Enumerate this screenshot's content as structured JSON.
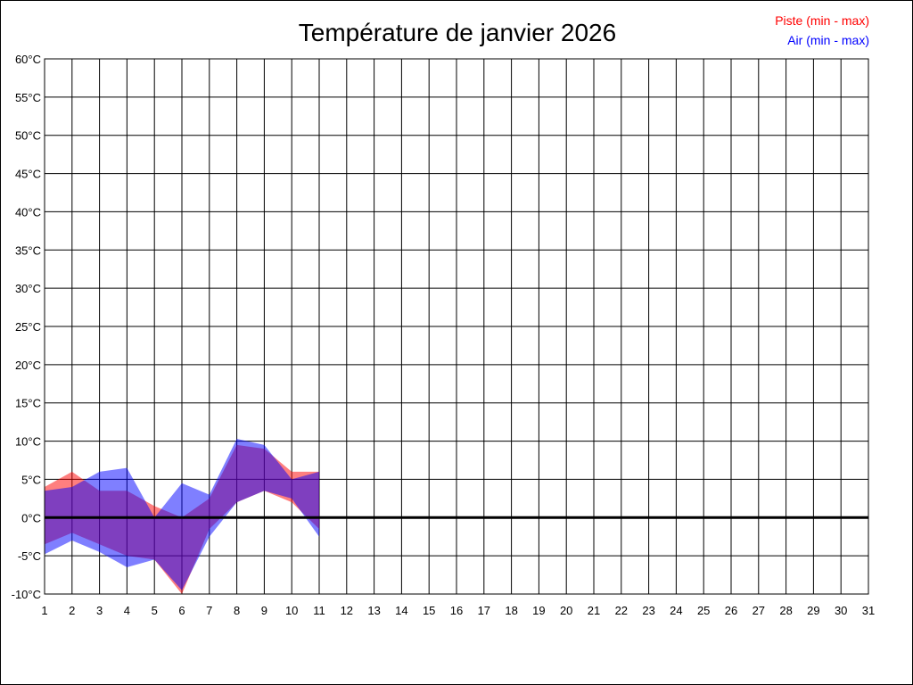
{
  "chart_data": {
    "type": "area",
    "title": "Température de janvier 2026",
    "x_ticks": [
      "1",
      "2",
      "3",
      "4",
      "5",
      "6",
      "7",
      "8",
      "9",
      "10",
      "11",
      "12",
      "13",
      "14",
      "15",
      "16",
      "17",
      "18",
      "19",
      "20",
      "21",
      "22",
      "23",
      "24",
      "25",
      "26",
      "27",
      "28",
      "29",
      "30",
      "31"
    ],
    "y_ticks": [
      "60°C",
      "55°C",
      "50°C",
      "45°C",
      "40°C",
      "35°C",
      "30°C",
      "25°C",
      "20°C",
      "15°C",
      "10°C",
      "5°C",
      "0°C",
      "-5°C",
      "-10°C"
    ],
    "xlim": [
      1,
      31
    ],
    "ylim": [
      -10,
      60
    ],
    "grid": true,
    "legend_position": "top-right",
    "series": [
      {
        "name": "Piste (min - max)",
        "color": "#ff0000",
        "x": [
          1,
          2,
          3,
          4,
          5,
          6,
          7,
          8,
          9,
          10,
          11
        ],
        "min": [
          -3.5,
          -2.0,
          -3.5,
          -5.0,
          -5.5,
          -10.0,
          -1.5,
          2.0,
          3.5,
          2.0,
          -1.5
        ],
        "max": [
          4.0,
          6.0,
          3.5,
          3.5,
          1.5,
          0.0,
          2.5,
          9.5,
          9.0,
          6.0,
          6.0
        ]
      },
      {
        "name": "Air (min - max)",
        "color": "#0000ff",
        "x": [
          1,
          2,
          3,
          4,
          5,
          6,
          7,
          8,
          9,
          10,
          11
        ],
        "min": [
          -4.8,
          -3.0,
          -4.5,
          -6.5,
          -5.5,
          -9.5,
          -2.5,
          2.0,
          3.5,
          2.5,
          -2.5
        ],
        "max": [
          3.5,
          4.0,
          6.0,
          6.5,
          0.0,
          4.5,
          3.0,
          10.3,
          9.5,
          5.0,
          6.0
        ]
      }
    ]
  }
}
